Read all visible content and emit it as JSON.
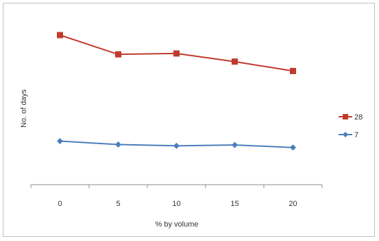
{
  "chart_data": {
    "type": "line",
    "title": "",
    "xlabel": "% by volume",
    "ylabel": "No. of days",
    "categories": [
      "0",
      "5",
      "10",
      "15",
      "20"
    ],
    "ylim": [
      0,
      40
    ],
    "grid": false,
    "legend_position": "right",
    "series": [
      {
        "name": "28",
        "color": "#c0392b",
        "marker": "square",
        "values": [
          35,
          30.5,
          30.7,
          28.8,
          26.6
        ]
      },
      {
        "name": "7",
        "color": "#4a7ebb",
        "marker": "diamond",
        "values": [
          10.2,
          9.4,
          9.1,
          9.3,
          8.7
        ]
      }
    ]
  }
}
